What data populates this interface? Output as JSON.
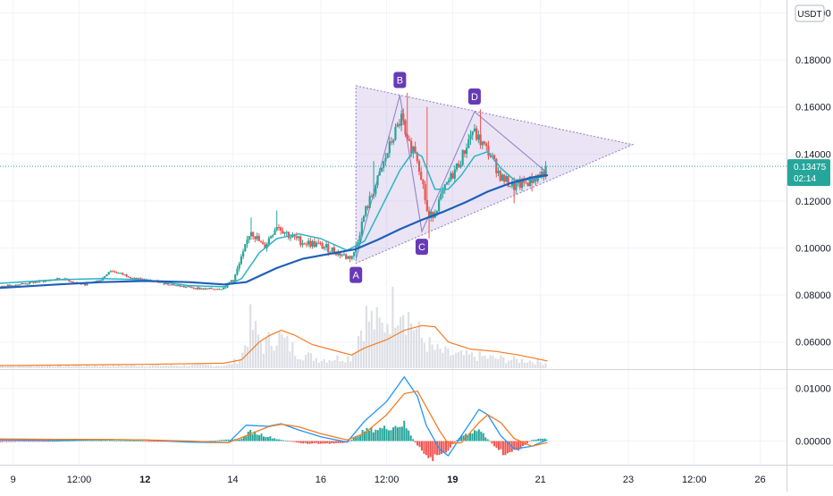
{
  "chart_data": [
    {
      "type": "candlestick",
      "panel": "price",
      "y_axis": {
        "ticks": [
          0.2,
          0.18,
          0.16,
          0.14,
          0.12,
          0.1,
          0.08,
          0.06
        ],
        "tick_labels": [
          "0.20000",
          "0.18000",
          "0.16000",
          "0.14000",
          "0.12000",
          "0.10000",
          "0.08000",
          "0.06000"
        ],
        "ylim": [
          0.0485,
          0.2055
        ],
        "currency": "USDT"
      },
      "x_axis": {
        "range": [
          8.7,
          26.6
        ],
        "ticks": [
          {
            "x": 9.0,
            "label": "9",
            "bold": false
          },
          {
            "x": 10.5,
            "label": "12:00",
            "bold": false
          },
          {
            "x": 12.0,
            "label": "12",
            "bold": true
          },
          {
            "x": 14.0,
            "label": "14",
            "bold": false
          },
          {
            "x": 16.0,
            "label": "16",
            "bold": false
          },
          {
            "x": 17.5,
            "label": "12:00",
            "bold": false
          },
          {
            "x": 19.0,
            "label": "19",
            "bold": true
          },
          {
            "x": 21.0,
            "label": "21",
            "bold": false
          },
          {
            "x": 23.0,
            "label": "23",
            "bold": false
          },
          {
            "x": 24.5,
            "label": "12:00",
            "bold": false
          },
          {
            "x": 26.0,
            "label": "26",
            "bold": false
          }
        ]
      },
      "last_price": {
        "value": "0.13475",
        "countdown": "02:14",
        "color": "#26a69a"
      },
      "up_color": "#26a69a",
      "down_color": "#ef5350",
      "series": [
        {
          "type": "candles",
          "anchors": [
            [
              8.7,
              0.0835
            ],
            [
              9.5,
              0.0855
            ],
            [
              10.1,
              0.087
            ],
            [
              10.6,
              0.0845
            ],
            [
              11.0,
              0.0865
            ],
            [
              11.2,
              0.0905
            ],
            [
              11.8,
              0.087
            ],
            [
              12.3,
              0.0855
            ],
            [
              12.9,
              0.0835
            ],
            [
              13.4,
              0.0825
            ],
            [
              13.8,
              0.083
            ],
            [
              14.05,
              0.088
            ],
            [
              14.25,
              0.098
            ],
            [
              14.4,
              0.108
            ],
            [
              14.7,
              0.1
            ],
            [
              15.0,
              0.11
            ],
            [
              15.3,
              0.105
            ],
            [
              15.6,
              0.1025
            ],
            [
              15.9,
              0.1015
            ],
            [
              16.3,
              0.099
            ],
            [
              16.6,
              0.096
            ],
            [
              16.75,
              0.097
            ],
            [
              17.0,
              0.115
            ],
            [
              17.3,
              0.129
            ],
            [
              17.6,
              0.145
            ],
            [
              17.85,
              0.156
            ],
            [
              17.95,
              0.144
            ],
            [
              18.15,
              0.142
            ],
            [
              18.3,
              0.13
            ],
            [
              18.45,
              0.112
            ],
            [
              18.6,
              0.116
            ],
            [
              18.9,
              0.128
            ],
            [
              19.2,
              0.138
            ],
            [
              19.45,
              0.15
            ],
            [
              19.6,
              0.146
            ],
            [
              19.85,
              0.14
            ],
            [
              20.1,
              0.13
            ],
            [
              20.4,
              0.126
            ],
            [
              20.7,
              0.128
            ],
            [
              20.9,
              0.13
            ],
            [
              21.15,
              0.133
            ]
          ],
          "wick_spikes": [
            [
              14.4,
              0.113
            ],
            [
              15.0,
              0.116
            ],
            [
              17.2,
              0.137
            ],
            [
              17.95,
              0.166
            ],
            [
              18.4,
              0.16
            ],
            [
              18.45,
              0.104
            ],
            [
              19.65,
              0.159
            ],
            [
              20.4,
              0.119
            ],
            [
              20.8,
              0.124
            ],
            [
              21.1,
              0.137
            ]
          ]
        },
        {
          "type": "line",
          "indicator": "moving average (fast)",
          "color": "#2ab3c6",
          "points": [
            [
              8.7,
              0.085
            ],
            [
              10.0,
              0.0865
            ],
            [
              11.0,
              0.087
            ],
            [
              12.0,
              0.0865
            ],
            [
              13.0,
              0.084
            ],
            [
              13.8,
              0.0835
            ],
            [
              14.2,
              0.087
            ],
            [
              14.6,
              0.098
            ],
            [
              15.0,
              0.104
            ],
            [
              15.5,
              0.106
            ],
            [
              16.0,
              0.104
            ],
            [
              16.6,
              0.099
            ],
            [
              17.0,
              0.103
            ],
            [
              17.4,
              0.118
            ],
            [
              17.8,
              0.133
            ],
            [
              18.1,
              0.141
            ],
            [
              18.3,
              0.139
            ],
            [
              18.6,
              0.125
            ],
            [
              18.9,
              0.125
            ],
            [
              19.2,
              0.131
            ],
            [
              19.5,
              0.139
            ],
            [
              19.8,
              0.141
            ],
            [
              20.1,
              0.134
            ],
            [
              20.4,
              0.129
            ],
            [
              20.8,
              0.129
            ],
            [
              21.15,
              0.131
            ]
          ]
        },
        {
          "type": "line",
          "indicator": "moving average (slow)",
          "color": "#1f5fb9",
          "points": [
            [
              8.7,
              0.083
            ],
            [
              10.0,
              0.0845
            ],
            [
              11.0,
              0.0855
            ],
            [
              12.0,
              0.086
            ],
            [
              13.0,
              0.0855
            ],
            [
              13.8,
              0.0845
            ],
            [
              14.3,
              0.0855
            ],
            [
              15.0,
              0.0915
            ],
            [
              15.6,
              0.0955
            ],
            [
              16.2,
              0.0975
            ],
            [
              16.8,
              0.0995
            ],
            [
              17.3,
              0.1035
            ],
            [
              17.8,
              0.108
            ],
            [
              18.3,
              0.112
            ],
            [
              18.8,
              0.1155
            ],
            [
              19.3,
              0.1195
            ],
            [
              19.8,
              0.124
            ],
            [
              20.3,
              0.1275
            ],
            [
              20.8,
              0.13
            ],
            [
              21.15,
              0.131
            ]
          ]
        },
        {
          "type": "volume",
          "color": "#d1d4dc",
          "note": "histogram drawn behind the price candles, relative heights only",
          "anchors": [
            [
              8.7,
              0.03
            ],
            [
              13.9,
              0.04
            ],
            [
              14.2,
              0.15
            ],
            [
              14.4,
              0.6
            ],
            [
              14.7,
              0.3
            ],
            [
              15.0,
              0.45
            ],
            [
              15.5,
              0.2
            ],
            [
              16.0,
              0.12
            ],
            [
              16.7,
              0.15
            ],
            [
              17.0,
              0.7
            ],
            [
              17.4,
              0.55
            ],
            [
              17.8,
              1.0
            ],
            [
              18.0,
              0.7
            ],
            [
              18.3,
              0.4
            ],
            [
              18.6,
              0.25
            ],
            [
              19.0,
              0.18
            ],
            [
              19.6,
              0.16
            ],
            [
              20.2,
              0.12
            ],
            [
              20.8,
              0.1
            ],
            [
              21.15,
              0.07
            ]
          ]
        },
        {
          "type": "line",
          "indicator": "volume moving average",
          "color": "#f57c24",
          "points": [
            [
              8.7,
              0.05
            ],
            [
              12.0,
              0.0505
            ],
            [
              13.8,
              0.051
            ],
            [
              14.2,
              0.0525
            ],
            [
              14.6,
              0.06
            ],
            [
              14.8,
              0.0625
            ],
            [
              15.1,
              0.065
            ],
            [
              15.4,
              0.063
            ],
            [
              15.8,
              0.059
            ],
            [
              16.3,
              0.0565
            ],
            [
              16.7,
              0.0545
            ],
            [
              17.0,
              0.0575
            ],
            [
              17.5,
              0.061
            ],
            [
              17.9,
              0.065
            ],
            [
              18.3,
              0.067
            ],
            [
              18.6,
              0.0665
            ],
            [
              18.9,
              0.06
            ],
            [
              19.4,
              0.057
            ],
            [
              20.0,
              0.056
            ],
            [
              20.5,
              0.0545
            ],
            [
              21.15,
              0.052
            ]
          ]
        }
      ],
      "pattern": {
        "type": "triangle",
        "color": "#8e7cc3",
        "points": [
          {
            "label": "A",
            "x": 16.8,
            "y": 0.095
          },
          {
            "label": "B",
            "x": 17.8,
            "y": 0.165
          },
          {
            "label": "C",
            "x": 18.3,
            "y": 0.107
          },
          {
            "label": "D",
            "x": 19.5,
            "y": 0.158
          }
        ],
        "triangle": [
          [
            16.8,
            0.169
          ],
          [
            23.1,
            0.144
          ],
          [
            16.8,
            0.0935
          ]
        ]
      }
    },
    {
      "type": "macd",
      "panel": "oscillator",
      "y_axis": {
        "ticks": [
          0.01,
          0.0
        ],
        "tick_labels": [
          "0.01000",
          "0.00000"
        ],
        "ylim": [
          -0.0045,
          0.0135
        ]
      },
      "series": [
        {
          "name": "",
          "type": "line",
          "color": "#2196f3",
          "points": [
            [
              8.7,
              0.0002
            ],
            [
              10.0,
              0.0001
            ],
            [
              11.0,
              0.0003
            ],
            [
              12.0,
              0.0002
            ],
            [
              13.0,
              -0.0002
            ],
            [
              13.9,
              -0.0003
            ],
            [
              14.3,
              0.003
            ],
            [
              14.8,
              0.0028
            ],
            [
              15.1,
              0.0033
            ],
            [
              15.5,
              0.0021
            ],
            [
              16.0,
              0.0008
            ],
            [
              16.6,
              -0.0002
            ],
            [
              17.0,
              0.0038
            ],
            [
              17.5,
              0.0075
            ],
            [
              17.9,
              0.0122
            ],
            [
              18.2,
              0.0085
            ],
            [
              18.4,
              0.003
            ],
            [
              18.7,
              -0.0015
            ],
            [
              18.9,
              -0.0028
            ],
            [
              19.2,
              0.001
            ],
            [
              19.6,
              0.006
            ],
            [
              19.8,
              0.005
            ],
            [
              20.1,
              0.001
            ],
            [
              20.4,
              -0.0015
            ],
            [
              20.8,
              -0.001
            ],
            [
              21.15,
              0.0002
            ]
          ]
        },
        {
          "name": "",
          "type": "line",
          "color": "#f57c24",
          "points": [
            [
              8.7,
              0.0004
            ],
            [
              10.0,
              0.0003
            ],
            [
              11.0,
              0.0003
            ],
            [
              12.0,
              0.0002
            ],
            [
              13.0,
              0.0
            ],
            [
              13.9,
              -0.0003
            ],
            [
              14.3,
              0.001
            ],
            [
              14.8,
              0.0027
            ],
            [
              15.1,
              0.0032
            ],
            [
              15.5,
              0.0027
            ],
            [
              16.0,
              0.0014
            ],
            [
              16.6,
              0.0002
            ],
            [
              17.0,
              0.0015
            ],
            [
              17.5,
              0.005
            ],
            [
              17.9,
              0.009
            ],
            [
              18.2,
              0.0095
            ],
            [
              18.4,
              0.0065
            ],
            [
              18.7,
              0.002
            ],
            [
              18.9,
              -0.0005
            ],
            [
              19.2,
              -0.0003
            ],
            [
              19.6,
              0.0035
            ],
            [
              19.8,
              0.005
            ],
            [
              20.1,
              0.0035
            ],
            [
              20.4,
              0.0005
            ],
            [
              20.8,
              -0.001
            ],
            [
              21.15,
              -0.0003
            ]
          ]
        },
        {
          "name": "",
          "type": "histogram",
          "positive_color": "#26a69a",
          "negative_color": "#ef5350",
          "anchors": [
            [
              8.7,
              -0.0002
            ],
            [
              11.0,
              0.0002
            ],
            [
              13.0,
              -0.0002
            ],
            [
              14.2,
              0.0004
            ],
            [
              14.4,
              0.0018
            ],
            [
              15.0,
              0.0004
            ],
            [
              15.6,
              -0.0005
            ],
            [
              16.6,
              -0.0004
            ],
            [
              17.0,
              0.002
            ],
            [
              17.5,
              0.0025
            ],
            [
              17.9,
              0.0032
            ],
            [
              18.2,
              -0.001
            ],
            [
              18.5,
              -0.0035
            ],
            [
              18.8,
              -0.0023
            ],
            [
              19.2,
              0.001
            ],
            [
              19.6,
              0.0022
            ],
            [
              19.9,
              -0.0005
            ],
            [
              20.2,
              -0.0025
            ],
            [
              20.5,
              -0.0018
            ],
            [
              20.8,
              0.0002
            ],
            [
              21.15,
              0.0005
            ]
          ]
        }
      ]
    }
  ]
}
